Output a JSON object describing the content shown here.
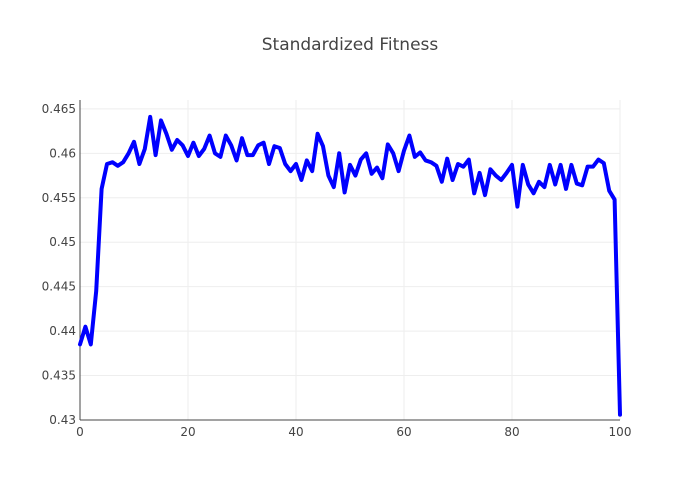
{
  "chart_data": {
    "type": "line",
    "title": "Standardized Fitness",
    "xlabel": "",
    "ylabel": "",
    "xlim": [
      0,
      100
    ],
    "ylim": [
      0.43,
      0.466
    ],
    "grid": true,
    "x_ticks": [
      0,
      20,
      40,
      60,
      80,
      100
    ],
    "x_tick_labels": [
      "0",
      "20",
      "40",
      "60",
      "80",
      "100"
    ],
    "y_ticks": [
      0.43,
      0.435,
      0.44,
      0.445,
      0.45,
      0.455,
      0.46,
      0.465
    ],
    "y_tick_labels": [
      "0.43",
      "0.435",
      "0.44",
      "0.445",
      "0.45",
      "0.455",
      "0.46",
      "0.465"
    ],
    "series": [
      {
        "color": "#0000ff",
        "x": [
          0,
          1,
          2,
          3,
          4,
          5,
          6,
          7,
          8,
          9,
          10,
          11,
          12,
          13,
          14,
          15,
          16,
          17,
          18,
          19,
          20,
          21,
          22,
          23,
          24,
          25,
          26,
          27,
          28,
          29,
          30,
          31,
          32,
          33,
          34,
          35,
          36,
          37,
          38,
          39,
          40,
          41,
          42,
          43,
          44,
          45,
          46,
          47,
          48,
          49,
          50,
          51,
          52,
          53,
          54,
          55,
          56,
          57,
          58,
          59,
          60,
          61,
          62,
          63,
          64,
          65,
          66,
          67,
          68,
          69,
          70,
          71,
          72,
          73,
          74,
          75,
          76,
          77,
          78,
          79,
          80,
          81,
          82,
          83,
          84,
          85,
          86,
          87,
          88,
          89,
          90,
          91,
          92,
          93,
          94,
          95,
          96,
          97,
          98,
          99,
          100
        ],
        "y": [
          0.4385,
          0.4405,
          0.4385,
          0.4445,
          0.456,
          0.4588,
          0.459,
          0.4586,
          0.459,
          0.46,
          0.4613,
          0.4588,
          0.4605,
          0.4641,
          0.4598,
          0.4637,
          0.4622,
          0.4604,
          0.4615,
          0.4609,
          0.4597,
          0.4612,
          0.4597,
          0.4605,
          0.462,
          0.46,
          0.4596,
          0.462,
          0.4609,
          0.4592,
          0.4617,
          0.4598,
          0.4598,
          0.4609,
          0.4612,
          0.4588,
          0.4608,
          0.4606,
          0.4588,
          0.458,
          0.4588,
          0.457,
          0.4592,
          0.458,
          0.4622,
          0.4608,
          0.4575,
          0.4562,
          0.46,
          0.4556,
          0.4587,
          0.4575,
          0.4593,
          0.46,
          0.4577,
          0.4584,
          0.4572,
          0.461,
          0.46,
          0.458,
          0.4603,
          0.462,
          0.4596,
          0.4601,
          0.4592,
          0.459,
          0.4586,
          0.4568,
          0.4594,
          0.457,
          0.4588,
          0.4585,
          0.4593,
          0.4555,
          0.4578,
          0.4553,
          0.4582,
          0.4575,
          0.457,
          0.4578,
          0.4587,
          0.454,
          0.4587,
          0.4565,
          0.4555,
          0.4568,
          0.4562,
          0.4587,
          0.4565,
          0.4587,
          0.456,
          0.4587,
          0.4566,
          0.4564,
          0.4585,
          0.4585,
          0.4593,
          0.4589,
          0.4558,
          0.4548,
          0.4306
        ]
      }
    ]
  }
}
